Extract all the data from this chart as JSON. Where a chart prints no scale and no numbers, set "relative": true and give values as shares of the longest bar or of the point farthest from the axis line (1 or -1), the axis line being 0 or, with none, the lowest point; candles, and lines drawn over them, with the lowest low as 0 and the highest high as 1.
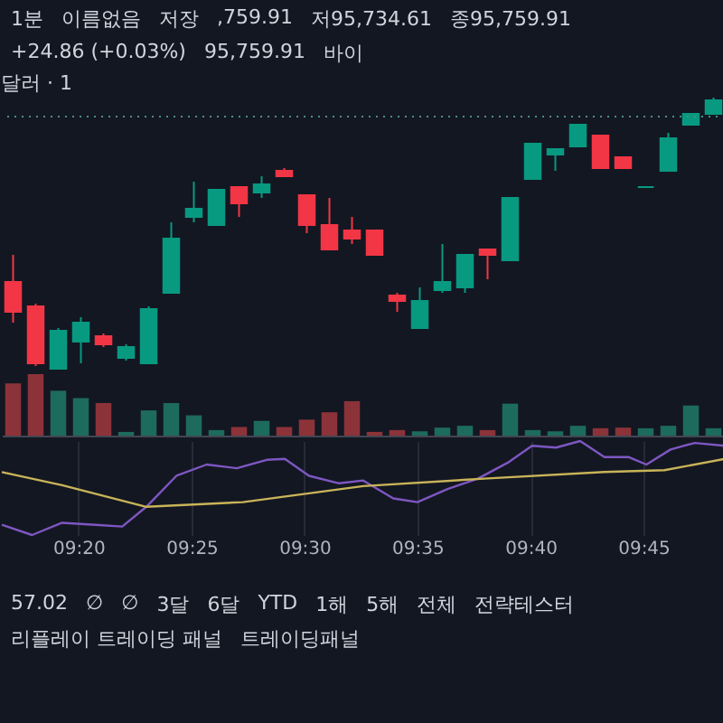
{
  "chart_data": [
    {
      "type": "candlestick",
      "title": "달러 · 1",
      "relative": true,
      "tick_labels": false,
      "categories": [
        null,
        null,
        null,
        null,
        null,
        null,
        null,
        null,
        null,
        null,
        null,
        null,
        null,
        null,
        null,
        null,
        null,
        null,
        null,
        null,
        null,
        null,
        null,
        null,
        null,
        null,
        null,
        null,
        null,
        null,
        null,
        null
      ],
      "ohlc": [
        [
          0.32,
          0.42,
          0.17,
          0.21
        ],
        [
          0.23,
          0.24,
          0.01,
          0.02
        ],
        [
          0,
          0.15,
          0,
          0.14
        ],
        [
          0.1,
          0.19,
          0.02,
          0.17
        ],
        [
          0.12,
          0.13,
          0.08,
          0.09
        ],
        [
          0.04,
          0.09,
          0.03,
          0.08
        ],
        [
          0.02,
          0.23,
          0.02,
          0.22
        ],
        [
          0.28,
          0.54,
          0.28,
          0.48
        ],
        [
          0.56,
          0.69,
          0.54,
          0.59
        ],
        [
          0.53,
          0.66,
          0.53,
          0.66
        ],
        [
          0.67,
          0.67,
          0.56,
          0.61
        ],
        [
          0.65,
          0.71,
          0.63,
          0.68
        ],
        [
          0.73,
          0.74,
          0.71,
          0.71
        ],
        [
          0.64,
          0.64,
          0.5,
          0.53
        ],
        [
          0.53,
          0.63,
          0.44,
          0.44
        ],
        [
          0.51,
          0.56,
          0.46,
          0.48
        ],
        [
          0.51,
          0.51,
          0.42,
          0.42
        ],
        [
          0.27,
          0.28,
          0.21,
          0.25
        ],
        [
          0.15,
          0.3,
          0.15,
          0.25
        ],
        [
          0.29,
          0.46,
          0.28,
          0.32
        ],
        [
          0.3,
          0.42,
          0.28,
          0.42
        ],
        [
          0.44,
          0.44,
          0.33,
          0.42
        ],
        [
          0.4,
          0.63,
          0.4,
          0.63
        ],
        [
          0.7,
          0.83,
          0.7,
          0.83
        ],
        [
          0.79,
          0.81,
          0.73,
          0.81
        ],
        [
          0.82,
          0.9,
          0.82,
          0.9
        ],
        [
          0.86,
          0.86,
          0.74,
          0.74
        ],
        [
          0.78,
          0.78,
          0.74,
          0.74
        ],
        [
          0.67,
          0.67,
          0.67,
          0.67
        ],
        [
          0.73,
          0.87,
          0.73,
          0.85
        ],
        [
          0.9,
          0.94,
          0.9,
          0.94
        ],
        [
          0.94,
          1,
          0.94,
          0.99
        ]
      ],
      "colors": [
        "#f23645",
        "#f23645",
        "#089981",
        "#089981",
        "#f23645",
        "#089981",
        "#089981",
        "#089981",
        "#089981",
        "#089981",
        "#f23645",
        "#089981",
        "#f23645",
        "#f23645",
        "#f23645",
        "#f23645",
        "#f23645",
        "#f23645",
        "#089981",
        "#089981",
        "#089981",
        "#f23645",
        "#089981",
        "#089981",
        "#089981",
        "#089981",
        "#f23645",
        "#f23645",
        "#089981",
        "#089981",
        "#089981",
        "#089981"
      ],
      "ref_lines": [
        {
          "axis": "y",
          "value": 0.93,
          "line_style": "dotted",
          "color": "#4a8f80"
        }
      ],
      "annotations": [
        "1분",
        "이름없음",
        "저장",
        ",759.91",
        "저95,734.61",
        "종95,759.91",
        "+24.86 (+0.03%)",
        "95,759.91",
        "바이"
      ]
    },
    {
      "type": "bar",
      "relative": true,
      "tick_labels": false,
      "categories": [
        null,
        null,
        null,
        null,
        null,
        null,
        null,
        null,
        null,
        null,
        null,
        null,
        null,
        null,
        null,
        null,
        null,
        null,
        null,
        null,
        null,
        null,
        null,
        null,
        null,
        null,
        null,
        null,
        null,
        null,
        null,
        null
      ],
      "values": [
        0.85,
        1,
        0.73,
        0.61,
        0.53,
        0.06,
        0.41,
        0.53,
        0.33,
        0.09,
        0.14,
        0.24,
        0.14,
        0.26,
        0.38,
        0.56,
        0.06,
        0.09,
        0.07,
        0.13,
        0.16,
        0.09,
        0.52,
        0.09,
        0.07,
        0.16,
        0.12,
        0.13,
        0.12,
        0.16,
        0.49,
        0.12
      ],
      "colors": [
        "#8c3339",
        "#8c3339",
        "#1d6b5c",
        "#1d6b5c",
        "#8c3339",
        "#1d6b5c",
        "#1d6b5c",
        "#1d6b5c",
        "#1d6b5c",
        "#1d6b5c",
        "#8c3339",
        "#1d6b5c",
        "#8c3339",
        "#8c3339",
        "#8c3339",
        "#8c3339",
        "#8c3339",
        "#8c3339",
        "#1d6b5c",
        "#1d6b5c",
        "#1d6b5c",
        "#8c3339",
        "#1d6b5c",
        "#1d6b5c",
        "#1d6b5c",
        "#1d6b5c",
        "#8c3339",
        "#8c3339",
        "#1d6b5c",
        "#1d6b5c",
        "#1d6b5c",
        "#1d6b5c"
      ]
    },
    {
      "type": "line",
      "relative": true,
      "grid": "x",
      "tick_labels": "x",
      "line_style": "solid",
      "xlim": [
        9.2767,
        9.81
      ],
      "xticks": [
        {
          "value": 9.3333,
          "label": "09:20"
        },
        {
          "value": 9.4167,
          "label": "09:25"
        },
        {
          "value": 9.5,
          "label": "09:30"
        },
        {
          "value": 9.5833,
          "label": "09:35"
        },
        {
          "value": 9.6667,
          "label": "09:40"
        },
        {
          "value": 9.75,
          "label": "09:45"
        }
      ],
      "series": [
        {
          "color": "#7e57c2",
          "x": [
            9.2767,
            9.299,
            9.3212,
            9.3433,
            9.3655,
            9.3833,
            9.4055,
            9.4278,
            9.45,
            9.4722,
            9.4855,
            9.5033,
            9.5255,
            9.5433,
            9.5655,
            9.5833,
            9.6055,
            9.6278,
            9.65,
            9.6678,
            9.6855,
            9.7033,
            9.7212,
            9.7388,
            9.7522,
            9.77,
            9.7878,
            9.81
          ],
          "values": [
            0.11,
            0,
            0.13,
            0.11,
            0.09,
            0.3,
            0.63,
            0.75,
            0.71,
            0.8,
            0.81,
            0.63,
            0.55,
            0.58,
            0.39,
            0.35,
            0.49,
            0.6,
            0.77,
            0.95,
            0.93,
            1,
            0.83,
            0.83,
            0.75,
            0.91,
            0.98,
            0.95
          ]
        },
        {
          "color": "#c9b458",
          "x": [
            9.2767,
            9.3212,
            9.3833,
            9.4545,
            9.5433,
            9.6322,
            9.7212,
            9.7655,
            9.81
          ],
          "values": [
            0.67,
            0.53,
            0.3,
            0.35,
            0.52,
            0.6,
            0.67,
            0.69,
            0.81
          ]
        }
      ],
      "annotations": [
        "57.02",
        "∅",
        "∅",
        "3달",
        "6달",
        "YTD",
        "1해",
        "5해",
        "전체",
        "전략테스터",
        "리플레이 트레이딩 패널",
        "트레이딩패널"
      ]
    }
  ]
}
